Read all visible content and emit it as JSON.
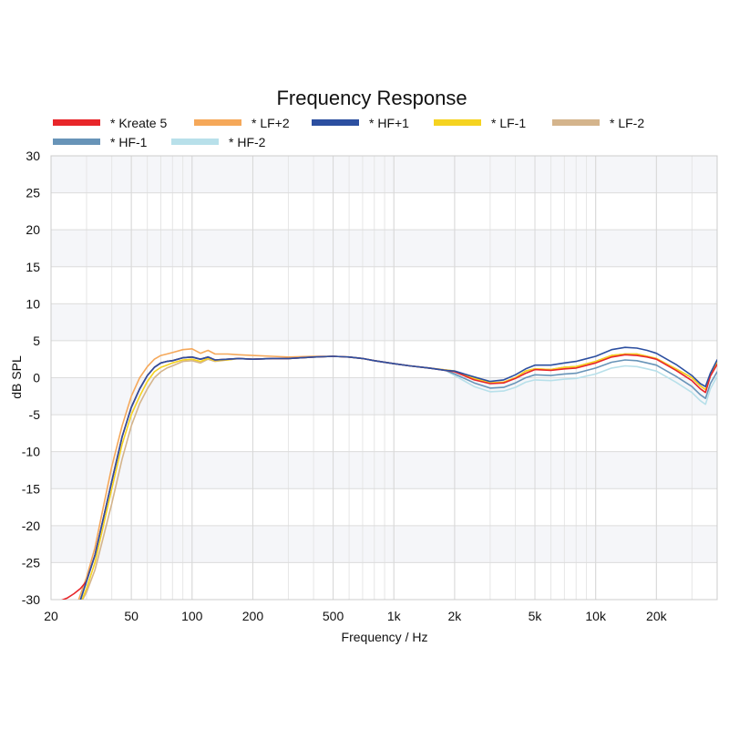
{
  "chart_data": {
    "type": "line",
    "title": "Frequency Response",
    "xlabel": "Frequency / Hz",
    "ylabel": "dB SPL",
    "xscale": "log",
    "xlim": [
      20,
      40000
    ],
    "ylim": [
      -30,
      30
    ],
    "grid": true,
    "legend_position": "top",
    "x_ticks": [
      {
        "value": 20,
        "label": "20"
      },
      {
        "value": 50,
        "label": "50"
      },
      {
        "value": 100,
        "label": "100"
      },
      {
        "value": 200,
        "label": "200"
      },
      {
        "value": 500,
        "label": "500"
      },
      {
        "value": 1000,
        "label": "1k"
      },
      {
        "value": 2000,
        "label": "2k"
      },
      {
        "value": 5000,
        "label": "5k"
      },
      {
        "value": 10000,
        "label": "10k"
      },
      {
        "value": 20000,
        "label": "20k"
      }
    ],
    "y_ticks": [
      {
        "value": 30,
        "label": "30"
      },
      {
        "value": 25,
        "label": "25"
      },
      {
        "value": 20,
        "label": "20"
      },
      {
        "value": 15,
        "label": "15"
      },
      {
        "value": 10,
        "label": "10"
      },
      {
        "value": 5,
        "label": "5"
      },
      {
        "value": 0,
        "label": "0"
      },
      {
        "value": -5,
        "label": "-5"
      },
      {
        "value": -10,
        "label": "-10"
      },
      {
        "value": -15,
        "label": "-15"
      },
      {
        "value": -20,
        "label": "-20"
      },
      {
        "value": -25,
        "label": "-25"
      },
      {
        "value": -30,
        "label": "-30"
      }
    ],
    "series": [
      {
        "name": "* LF-2",
        "color": "#d4b48c",
        "x": [
          28,
          30,
          33,
          36,
          40,
          45,
          50,
          55,
          60,
          65,
          70,
          75,
          80,
          90,
          100,
          110,
          120,
          130,
          150,
          170,
          200,
          250,
          300,
          400,
          500,
          600,
          700,
          800,
          1000,
          1200,
          1500,
          2000,
          2500,
          3000,
          3500,
          4000,
          4500,
          5000,
          6000,
          7000,
          8000,
          10000,
          12000,
          14000,
          16000,
          18000,
          20000,
          25000,
          30000,
          33000,
          35000,
          37000,
          40000
        ],
        "y": [
          -30.5,
          -29,
          -26,
          -22,
          -17,
          -11,
          -6.5,
          -3.5,
          -1.5,
          0,
          0.8,
          1.3,
          1.6,
          2.2,
          2.3,
          2,
          2.5,
          2.2,
          2.4,
          2.6,
          2.5,
          2.6,
          2.6,
          2.8,
          2.9,
          2.8,
          2.6,
          2.3,
          1.9,
          1.6,
          1.3,
          0.9,
          -0.1,
          -0.7,
          -0.6,
          0,
          0.9,
          1.2,
          1.1,
          1.4,
          1.5,
          2.2,
          3.0,
          3.2,
          3.2,
          2.9,
          2.6,
          1.2,
          0,
          -1.1,
          -1.6,
          0.5,
          2.2
        ]
      },
      {
        "name": "* LF+2",
        "color": "#f5a85a",
        "x": [
          27,
          30,
          33,
          36,
          40,
          45,
          50,
          55,
          60,
          65,
          70,
          75,
          80,
          90,
          100,
          110,
          120,
          130,
          150,
          170,
          200,
          250,
          300,
          400,
          500,
          600,
          700,
          800,
          1000,
          1200,
          1500,
          2000,
          2500,
          3000,
          3500,
          4000,
          4500,
          5000,
          6000,
          7000,
          8000,
          10000,
          12000,
          14000,
          16000,
          18000,
          20000,
          25000,
          30000,
          33000,
          35000,
          37000,
          40000
        ],
        "y": [
          -30.5,
          -27,
          -23,
          -18,
          -12,
          -6.5,
          -2.5,
          0,
          1.5,
          2.5,
          3.0,
          3.2,
          3.4,
          3.8,
          3.9,
          3.3,
          3.7,
          3.2,
          3.2,
          3.1,
          3.0,
          2.9,
          2.8,
          2.9,
          2.9,
          2.8,
          2.6,
          2.3,
          1.9,
          1.6,
          1.3,
          0.9,
          -0.1,
          -0.7,
          -0.6,
          0,
          0.9,
          1.2,
          1.1,
          1.4,
          1.5,
          2.2,
          3.0,
          3.2,
          3.2,
          2.9,
          2.6,
          1.2,
          0,
          -1.1,
          -1.6,
          0.5,
          2.2
        ]
      },
      {
        "name": "* LF-1",
        "color": "#f5d320",
        "x": [
          28,
          30,
          33,
          36,
          40,
          45,
          50,
          55,
          60,
          65,
          70,
          75,
          80,
          90,
          100,
          110,
          120,
          130,
          150,
          170,
          200,
          250,
          300,
          400,
          500,
          600,
          700,
          800,
          1000,
          1200,
          1500,
          2000,
          2500,
          3000,
          3500,
          4000,
          4500,
          5000,
          6000,
          7000,
          8000,
          10000,
          12000,
          14000,
          16000,
          18000,
          20000,
          25000,
          30000,
          33000,
          35000,
          37000,
          40000
        ],
        "y": [
          -30.5,
          -28.5,
          -25,
          -20.5,
          -15,
          -9,
          -5,
          -2.5,
          -0.5,
          0.8,
          1.4,
          1.7,
          2.0,
          2.4,
          2.5,
          2.2,
          2.6,
          2.3,
          2.4,
          2.6,
          2.5,
          2.6,
          2.6,
          2.8,
          2.9,
          2.8,
          2.6,
          2.3,
          1.9,
          1.6,
          1.3,
          0.9,
          -0.1,
          -0.7,
          -0.6,
          0,
          0.9,
          1.2,
          1.1,
          1.4,
          1.5,
          2.2,
          3.0,
          3.2,
          3.2,
          2.9,
          2.6,
          1.2,
          0,
          -1.1,
          -1.6,
          0.5,
          2.2
        ]
      },
      {
        "name": "* HF-2",
        "color": "#b8e0ea",
        "x": [
          28,
          30,
          33,
          36,
          40,
          45,
          50,
          55,
          60,
          65,
          70,
          75,
          80,
          90,
          100,
          110,
          120,
          130,
          150,
          170,
          200,
          250,
          300,
          400,
          500,
          600,
          700,
          800,
          1000,
          1200,
          1500,
          1800,
          2000,
          2500,
          3000,
          3500,
          4000,
          4500,
          5000,
          6000,
          7000,
          8000,
          10000,
          12000,
          14000,
          16000,
          18000,
          20000,
          25000,
          30000,
          33000,
          35000,
          37000,
          40000
        ],
        "y": [
          -30,
          -27.5,
          -24,
          -19.5,
          -14,
          -8,
          -4,
          -1.5,
          0.3,
          1.4,
          2.0,
          2.2,
          2.3,
          2.7,
          2.8,
          2.5,
          2.8,
          2.4,
          2.5,
          2.6,
          2.5,
          2.6,
          2.6,
          2.8,
          2.9,
          2.8,
          2.6,
          2.3,
          1.9,
          1.6,
          1.3,
          1.0,
          0.3,
          -1.2,
          -1.9,
          -1.8,
          -1.3,
          -0.6,
          -0.3,
          -0.4,
          -0.2,
          -0.1,
          0.5,
          1.3,
          1.6,
          1.5,
          1.2,
          0.9,
          -0.6,
          -2.0,
          -3.1,
          -3.6,
          -1.5,
          0.2
        ]
      },
      {
        "name": "* HF-1",
        "color": "#6894b8",
        "x": [
          28,
          30,
          33,
          36,
          40,
          45,
          50,
          55,
          60,
          65,
          70,
          75,
          80,
          90,
          100,
          110,
          120,
          130,
          150,
          170,
          200,
          250,
          300,
          400,
          500,
          600,
          700,
          800,
          1000,
          1200,
          1500,
          1800,
          2000,
          2500,
          3000,
          3500,
          4000,
          4500,
          5000,
          6000,
          7000,
          8000,
          10000,
          12000,
          14000,
          16000,
          18000,
          20000,
          25000,
          30000,
          33000,
          35000,
          37000,
          40000
        ],
        "y": [
          -30,
          -27.5,
          -24,
          -19.5,
          -14,
          -8,
          -4,
          -1.5,
          0.3,
          1.4,
          2.0,
          2.2,
          2.3,
          2.7,
          2.8,
          2.5,
          2.8,
          2.4,
          2.5,
          2.6,
          2.5,
          2.6,
          2.6,
          2.8,
          2.9,
          2.8,
          2.6,
          2.3,
          1.9,
          1.6,
          1.3,
          1.0,
          0.5,
          -0.7,
          -1.4,
          -1.3,
          -0.7,
          0,
          0.4,
          0.3,
          0.5,
          0.6,
          1.3,
          2.1,
          2.4,
          2.3,
          2.0,
          1.7,
          0.2,
          -1.2,
          -2.3,
          -2.8,
          -0.8,
          0.8
        ]
      },
      {
        "name": "* Kreate 5",
        "color": "#e8262a",
        "x": [
          20,
          22,
          24,
          26,
          28,
          30,
          33,
          36,
          40,
          45,
          50,
          55,
          60,
          65,
          70,
          75,
          80,
          90,
          100,
          110,
          120,
          130,
          150,
          170,
          200,
          250,
          300,
          400,
          500,
          600,
          700,
          800,
          1000,
          1200,
          1500,
          1800,
          2000,
          2500,
          3000,
          3500,
          4000,
          4500,
          5000,
          6000,
          7000,
          8000,
          10000,
          12000,
          14000,
          16000,
          18000,
          20000,
          25000,
          30000,
          33000,
          35000,
          37000,
          40000
        ],
        "y": [
          -30.5,
          -30.2,
          -29.8,
          -29.2,
          -28.5,
          -27.5,
          -24,
          -19.5,
          -14,
          -8,
          -4,
          -1.5,
          0.3,
          1.4,
          2.0,
          2.2,
          2.3,
          2.7,
          2.8,
          2.5,
          2.8,
          2.4,
          2.5,
          2.6,
          2.5,
          2.6,
          2.6,
          2.8,
          2.9,
          2.8,
          2.6,
          2.3,
          1.9,
          1.6,
          1.3,
          1.0,
          0.8,
          -0.3,
          -0.8,
          -0.7,
          -0.1,
          0.6,
          1.1,
          1.0,
          1.2,
          1.3,
          2.0,
          2.8,
          3.1,
          3.0,
          2.8,
          2.5,
          1.0,
          -0.4,
          -1.5,
          -2.0,
          0.2,
          1.8
        ]
      },
      {
        "name": "* HF+1",
        "color": "#2c4fa0",
        "x": [
          28,
          30,
          33,
          36,
          40,
          45,
          50,
          55,
          60,
          65,
          70,
          75,
          80,
          90,
          100,
          110,
          120,
          130,
          150,
          170,
          200,
          250,
          300,
          400,
          500,
          600,
          700,
          800,
          1000,
          1200,
          1500,
          1800,
          2000,
          2500,
          3000,
          3500,
          4000,
          4500,
          5000,
          6000,
          7000,
          8000,
          10000,
          12000,
          14000,
          16000,
          18000,
          20000,
          25000,
          30000,
          33000,
          35000,
          37000,
          40000
        ],
        "y": [
          -30,
          -27.5,
          -24,
          -19.5,
          -14,
          -8,
          -4,
          -1.5,
          0.3,
          1.4,
          2.0,
          2.2,
          2.3,
          2.7,
          2.8,
          2.5,
          2.8,
          2.4,
          2.5,
          2.6,
          2.5,
          2.6,
          2.6,
          2.8,
          2.9,
          2.8,
          2.6,
          2.3,
          1.9,
          1.6,
          1.3,
          1.0,
          0.9,
          0.1,
          -0.5,
          -0.3,
          0.4,
          1.2,
          1.7,
          1.7,
          2.0,
          2.2,
          2.9,
          3.8,
          4.1,
          4.0,
          3.7,
          3.3,
          1.8,
          0.3,
          -0.8,
          -1.2,
          0.6,
          2.4
        ]
      }
    ],
    "legend": {
      "items": [
        {
          "label": "* Kreate 5",
          "color": "#e8262a"
        },
        {
          "label": "* LF+2",
          "color": "#f5a85a"
        },
        {
          "label": "* HF+1",
          "color": "#2c4fa0"
        },
        {
          "label": "* LF-1",
          "color": "#f5d320"
        },
        {
          "label": "* LF-2",
          "color": "#d4b48c"
        },
        {
          "label": "* HF-1",
          "color": "#6894b8"
        },
        {
          "label": "* HF-2",
          "color": "#b8e0ea"
        }
      ]
    }
  }
}
